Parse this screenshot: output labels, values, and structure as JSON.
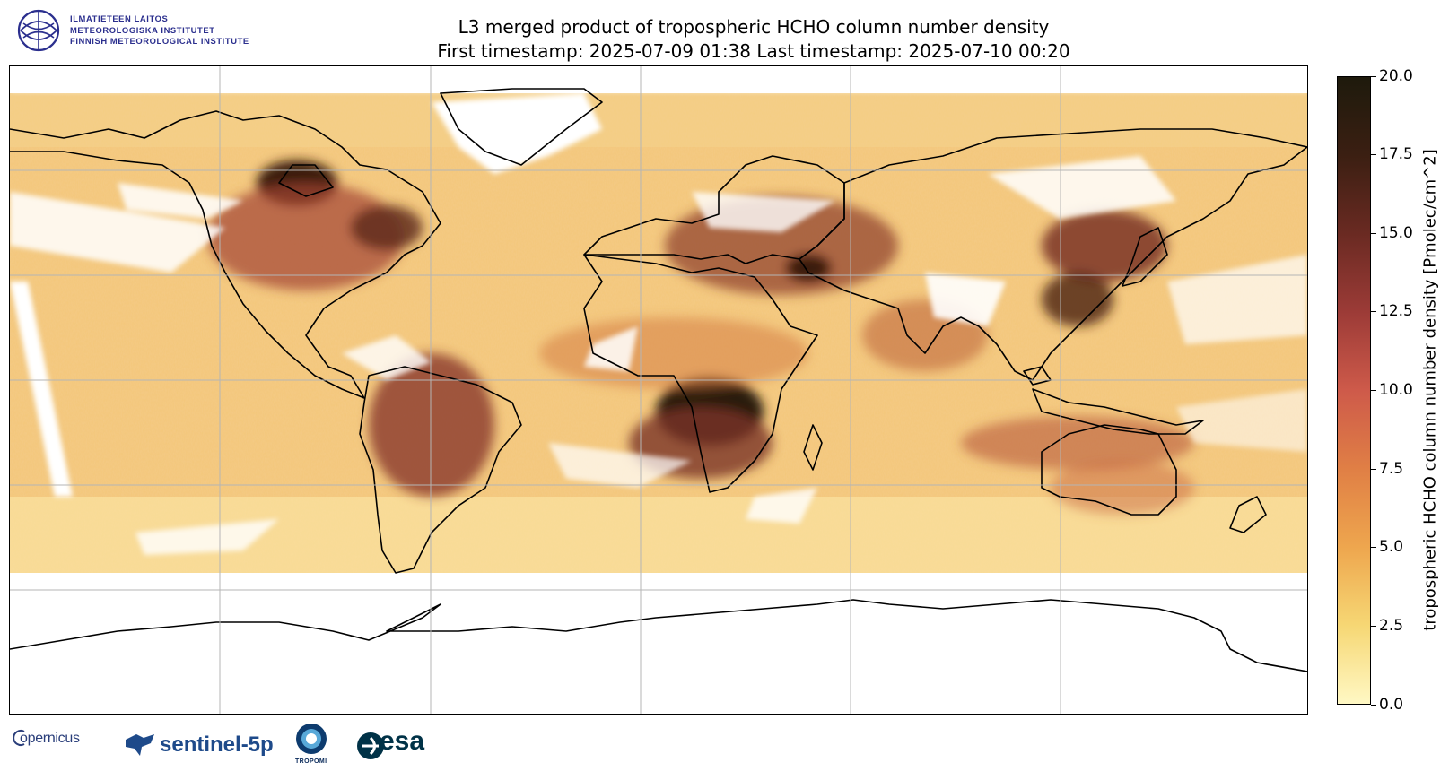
{
  "header": {
    "institute_lines": [
      "ILMATIETEEN LAITOS",
      "METEOROLOGISKA INSTITUTET",
      "FINNISH METEOROLOGICAL INSTITUTE"
    ],
    "title_line1": "L3 merged product of tropospheric HCHO column number density",
    "title_line2": "First timestamp: 2025-07-09 01:38   Last timestamp: 2025-07-10 00:20"
  },
  "map": {
    "projection": "equirectangular",
    "lon_range": [
      -180,
      180
    ],
    "lat_range": [
      -90,
      90
    ],
    "gridlines": true,
    "gridline_lon": [
      -120,
      -60,
      0,
      60,
      120
    ],
    "gridline_lat": [
      -60,
      -30,
      0,
      30,
      60
    ]
  },
  "colorbar": {
    "label": "tropospheric HCHO column number density [Pmolec/cm^2]",
    "ticks": [
      "0.0",
      "2.5",
      "5.0",
      "7.5",
      "10.0",
      "12.5",
      "15.0",
      "17.5",
      "20.0"
    ],
    "range": [
      0,
      20
    ],
    "colors": [
      "#fff8c4",
      "#f6d774",
      "#eea64e",
      "#e07f45",
      "#ce5a4a",
      "#9c3b37",
      "#6a2a22",
      "#3b1f12",
      "#1e1a0c"
    ]
  },
  "footer": {
    "logos": [
      "copernicus",
      "sentinel-5p",
      "tropomi",
      "esa"
    ],
    "copernicus_text": "opernicus",
    "sentinel_text": "sentinel-5p",
    "tropomi_text": "TROPOMI",
    "esa_text": "esa"
  }
}
